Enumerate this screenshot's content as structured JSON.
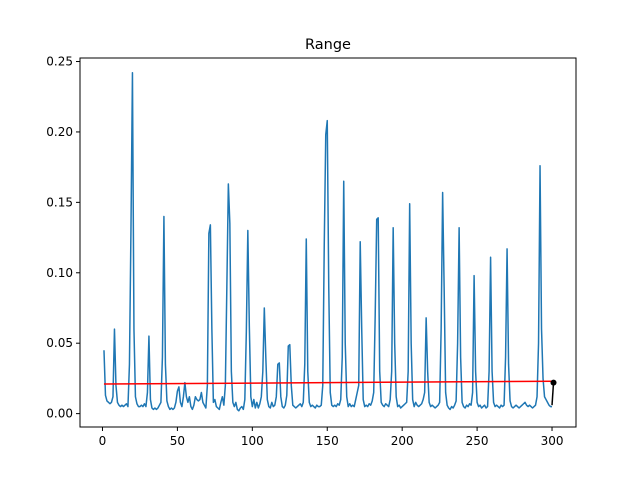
{
  "chart_data": {
    "type": "line",
    "title": "Range",
    "xlabel": "",
    "ylabel": "",
    "xlim": [
      -15,
      316
    ],
    "ylim": [
      -0.0095,
      0.2525
    ],
    "x_ticks": [
      0,
      50,
      100,
      150,
      200,
      250,
      300
    ],
    "x_tick_labels": [
      "0",
      "50",
      "100",
      "150",
      "200",
      "250",
      "300"
    ],
    "y_ticks": [
      0.0,
      0.05,
      0.1,
      0.15,
      0.2,
      0.25
    ],
    "y_tick_labels": [
      "0.00",
      "0.05",
      "0.10",
      "0.15",
      "0.20",
      "0.25"
    ],
    "grid": false,
    "colors": {
      "series": "#1f77b4",
      "trend": "#ff0000",
      "marker": "#000000"
    },
    "series": [
      {
        "values": [
          [
            1,
            0.045
          ],
          [
            2,
            0.013
          ],
          [
            3,
            0.009
          ],
          [
            4,
            0.008
          ],
          [
            5,
            0.007
          ],
          [
            6,
            0.008
          ],
          [
            7,
            0.012
          ],
          [
            8,
            0.06
          ],
          [
            9,
            0.02
          ],
          [
            10,
            0.008
          ],
          [
            11,
            0.006
          ],
          [
            12,
            0.005
          ],
          [
            13,
            0.006
          ],
          [
            14,
            0.005
          ],
          [
            15,
            0.006
          ],
          [
            16,
            0.007
          ],
          [
            17,
            0.005
          ],
          [
            18,
            0.035
          ],
          [
            19,
            0.13
          ],
          [
            20,
            0.242
          ],
          [
            21,
            0.06
          ],
          [
            22,
            0.012
          ],
          [
            23,
            0.007
          ],
          [
            24,
            0.005
          ],
          [
            25,
            0.005
          ],
          [
            26,
            0.006
          ],
          [
            27,
            0.005
          ],
          [
            28,
            0.007
          ],
          [
            29,
            0.005
          ],
          [
            30,
            0.015
          ],
          [
            31,
            0.055
          ],
          [
            32,
            0.01
          ],
          [
            33,
            0.004
          ],
          [
            34,
            0.003
          ],
          [
            35,
            0.004
          ],
          [
            36,
            0.003
          ],
          [
            37,
            0.004
          ],
          [
            38,
            0.006
          ],
          [
            39,
            0.008
          ],
          [
            40,
            0.04
          ],
          [
            41,
            0.14
          ],
          [
            42,
            0.035
          ],
          [
            43,
            0.009
          ],
          [
            44,
            0.005
          ],
          [
            45,
            0.003
          ],
          [
            46,
            0.004
          ],
          [
            47,
            0.003
          ],
          [
            48,
            0.004
          ],
          [
            49,
            0.008
          ],
          [
            50,
            0.016
          ],
          [
            51,
            0.019
          ],
          [
            52,
            0.008
          ],
          [
            53,
            0.005
          ],
          [
            54,
            0.012
          ],
          [
            55,
            0.022
          ],
          [
            56,
            0.012
          ],
          [
            57,
            0.008
          ],
          [
            58,
            0.012
          ],
          [
            59,
            0.005
          ],
          [
            60,
            0.003
          ],
          [
            61,
            0.006
          ],
          [
            62,
            0.012
          ],
          [
            63,
            0.01
          ],
          [
            64,
            0.009
          ],
          [
            65,
            0.01
          ],
          [
            66,
            0.015
          ],
          [
            67,
            0.008
          ],
          [
            68,
            0.006
          ],
          [
            69,
            0.004
          ],
          [
            70,
            0.02
          ],
          [
            71,
            0.128
          ],
          [
            72,
            0.134
          ],
          [
            73,
            0.06
          ],
          [
            74,
            0.008
          ],
          [
            75,
            0.01
          ],
          [
            76,
            0.005
          ],
          [
            77,
            0.004
          ],
          [
            78,
            0.003
          ],
          [
            79,
            0.008
          ],
          [
            80,
            0.012
          ],
          [
            81,
            0.006
          ],
          [
            82,
            0.02
          ],
          [
            83,
            0.09
          ],
          [
            84,
            0.163
          ],
          [
            85,
            0.135
          ],
          [
            86,
            0.03
          ],
          [
            87,
            0.008
          ],
          [
            88,
            0.005
          ],
          [
            89,
            0.008
          ],
          [
            90,
            0.003
          ],
          [
            91,
            0.002
          ],
          [
            92,
            0.004
          ],
          [
            93,
            0.005
          ],
          [
            94,
            0.003
          ],
          [
            95,
            0.01
          ],
          [
            96,
            0.058
          ],
          [
            97,
            0.13
          ],
          [
            98,
            0.062
          ],
          [
            99,
            0.012
          ],
          [
            100,
            0.005
          ],
          [
            101,
            0.01
          ],
          [
            102,
            0.004
          ],
          [
            103,
            0.008
          ],
          [
            104,
            0.004
          ],
          [
            105,
            0.007
          ],
          [
            106,
            0.012
          ],
          [
            107,
            0.03
          ],
          [
            108,
            0.075
          ],
          [
            109,
            0.04
          ],
          [
            110,
            0.01
          ],
          [
            111,
            0.005
          ],
          [
            112,
            0.004
          ],
          [
            113,
            0.008
          ],
          [
            114,
            0.005
          ],
          [
            115,
            0.006
          ],
          [
            116,
            0.012
          ],
          [
            117,
            0.035
          ],
          [
            118,
            0.036
          ],
          [
            119,
            0.012
          ],
          [
            120,
            0.005
          ],
          [
            121,
            0.004
          ],
          [
            122,
            0.006
          ],
          [
            123,
            0.013
          ],
          [
            124,
            0.048
          ],
          [
            125,
            0.049
          ],
          [
            126,
            0.02
          ],
          [
            127,
            0.006
          ],
          [
            128,
            0.005
          ],
          [
            129,
            0.004
          ],
          [
            130,
            0.005
          ],
          [
            131,
            0.006
          ],
          [
            132,
            0.007
          ],
          [
            133,
            0.005
          ],
          [
            134,
            0.008
          ],
          [
            135,
            0.035
          ],
          [
            136,
            0.124
          ],
          [
            137,
            0.03
          ],
          [
            138,
            0.008
          ],
          [
            139,
            0.005
          ],
          [
            140,
            0.006
          ],
          [
            141,
            0.005
          ],
          [
            142,
            0.004
          ],
          [
            143,
            0.006
          ],
          [
            144,
            0.005
          ],
          [
            145,
            0.005
          ],
          [
            146,
            0.006
          ],
          [
            147,
            0.02
          ],
          [
            148,
            0.12
          ],
          [
            149,
            0.198
          ],
          [
            150,
            0.208
          ],
          [
            151,
            0.09
          ],
          [
            152,
            0.015
          ],
          [
            153,
            0.006
          ],
          [
            154,
            0.005
          ],
          [
            155,
            0.006
          ],
          [
            156,
            0.005
          ],
          [
            157,
            0.007
          ],
          [
            158,
            0.006
          ],
          [
            159,
            0.01
          ],
          [
            160,
            0.04
          ],
          [
            161,
            0.165
          ],
          [
            162,
            0.05
          ],
          [
            163,
            0.012
          ],
          [
            164,
            0.005
          ],
          [
            165,
            0.007
          ],
          [
            166,
            0.005
          ],
          [
            167,
            0.006
          ],
          [
            168,
            0.005
          ],
          [
            169,
            0.01
          ],
          [
            170,
            0.015
          ],
          [
            171,
            0.02
          ],
          [
            172,
            0.122
          ],
          [
            173,
            0.06
          ],
          [
            174,
            0.01
          ],
          [
            175,
            0.005
          ],
          [
            176,
            0.006
          ],
          [
            177,
            0.005
          ],
          [
            178,
            0.007
          ],
          [
            179,
            0.006
          ],
          [
            180,
            0.009
          ],
          [
            181,
            0.015
          ],
          [
            182,
            0.07
          ],
          [
            183,
            0.138
          ],
          [
            184,
            0.139
          ],
          [
            185,
            0.03
          ],
          [
            186,
            0.008
          ],
          [
            187,
            0.006
          ],
          [
            188,
            0.005
          ],
          [
            189,
            0.007
          ],
          [
            190,
            0.006
          ],
          [
            191,
            0.005
          ],
          [
            192,
            0.01
          ],
          [
            193,
            0.03
          ],
          [
            194,
            0.132
          ],
          [
            195,
            0.05
          ],
          [
            196,
            0.012
          ],
          [
            197,
            0.005
          ],
          [
            198,
            0.006
          ],
          [
            199,
            0.004
          ],
          [
            200,
            0.005
          ],
          [
            201,
            0.006
          ],
          [
            202,
            0.007
          ],
          [
            203,
            0.008
          ],
          [
            204,
            0.03
          ],
          [
            205,
            0.149
          ],
          [
            206,
            0.05
          ],
          [
            207,
            0.01
          ],
          [
            208,
            0.005
          ],
          [
            209,
            0.008
          ],
          [
            210,
            0.006
          ],
          [
            211,
            0.005
          ],
          [
            212,
            0.006
          ],
          [
            213,
            0.007
          ],
          [
            214,
            0.01
          ],
          [
            215,
            0.015
          ],
          [
            216,
            0.068
          ],
          [
            217,
            0.03
          ],
          [
            218,
            0.008
          ],
          [
            219,
            0.005
          ],
          [
            220,
            0.006
          ],
          [
            221,
            0.005
          ],
          [
            222,
            0.004
          ],
          [
            223,
            0.005
          ],
          [
            224,
            0.006
          ],
          [
            225,
            0.008
          ],
          [
            226,
            0.06
          ],
          [
            227,
            0.157
          ],
          [
            228,
            0.09
          ],
          [
            229,
            0.015
          ],
          [
            230,
            0.006
          ],
          [
            231,
            0.004
          ],
          [
            232,
            0.003
          ],
          [
            233,
            0.005
          ],
          [
            234,
            0.004
          ],
          [
            235,
            0.006
          ],
          [
            236,
            0.009
          ],
          [
            237,
            0.05
          ],
          [
            238,
            0.132
          ],
          [
            239,
            0.04
          ],
          [
            240,
            0.008
          ],
          [
            241,
            0.005
          ],
          [
            242,
            0.004
          ],
          [
            243,
            0.006
          ],
          [
            244,
            0.005
          ],
          [
            245,
            0.007
          ],
          [
            246,
            0.006
          ],
          [
            247,
            0.015
          ],
          [
            248,
            0.098
          ],
          [
            249,
            0.03
          ],
          [
            250,
            0.008
          ],
          [
            251,
            0.005
          ],
          [
            252,
            0.006
          ],
          [
            253,
            0.004
          ],
          [
            254,
            0.005
          ],
          [
            255,
            0.006
          ],
          [
            256,
            0.004
          ],
          [
            257,
            0.005
          ],
          [
            258,
            0.03
          ],
          [
            259,
            0.111
          ],
          [
            260,
            0.03
          ],
          [
            261,
            0.008
          ],
          [
            262,
            0.005
          ],
          [
            263,
            0.006
          ],
          [
            264,
            0.005
          ],
          [
            265,
            0.004
          ],
          [
            266,
            0.006
          ],
          [
            267,
            0.005
          ],
          [
            268,
            0.006
          ],
          [
            269,
            0.04
          ],
          [
            270,
            0.117
          ],
          [
            271,
            0.035
          ],
          [
            272,
            0.009
          ],
          [
            273,
            0.005
          ],
          [
            274,
            0.004
          ],
          [
            275,
            0.005
          ],
          [
            276,
            0.006
          ],
          [
            277,
            0.005
          ],
          [
            278,
            0.004
          ],
          [
            279,
            0.005
          ],
          [
            280,
            0.006
          ],
          [
            281,
            0.007
          ],
          [
            282,
            0.008
          ],
          [
            283,
            0.006
          ],
          [
            284,
            0.005
          ],
          [
            285,
            0.006
          ],
          [
            286,
            0.005
          ],
          [
            287,
            0.004
          ],
          [
            288,
            0.005
          ],
          [
            289,
            0.006
          ],
          [
            290,
            0.012
          ],
          [
            291,
            0.05
          ],
          [
            292,
            0.176
          ],
          [
            293,
            0.06
          ],
          [
            294,
            0.025
          ],
          [
            295,
            0.012
          ],
          [
            296,
            0.01
          ],
          [
            297,
            0.008
          ],
          [
            298,
            0.006
          ],
          [
            299,
            0.005
          ],
          [
            300,
            0.005
          ]
        ]
      },
      {
        "values": [
          [
            1,
            0.021
          ],
          [
            301,
            0.023
          ]
        ]
      },
      {
        "values": [
          [
            300,
            0.006
          ],
          [
            301,
            0.022
          ]
        ]
      }
    ]
  }
}
